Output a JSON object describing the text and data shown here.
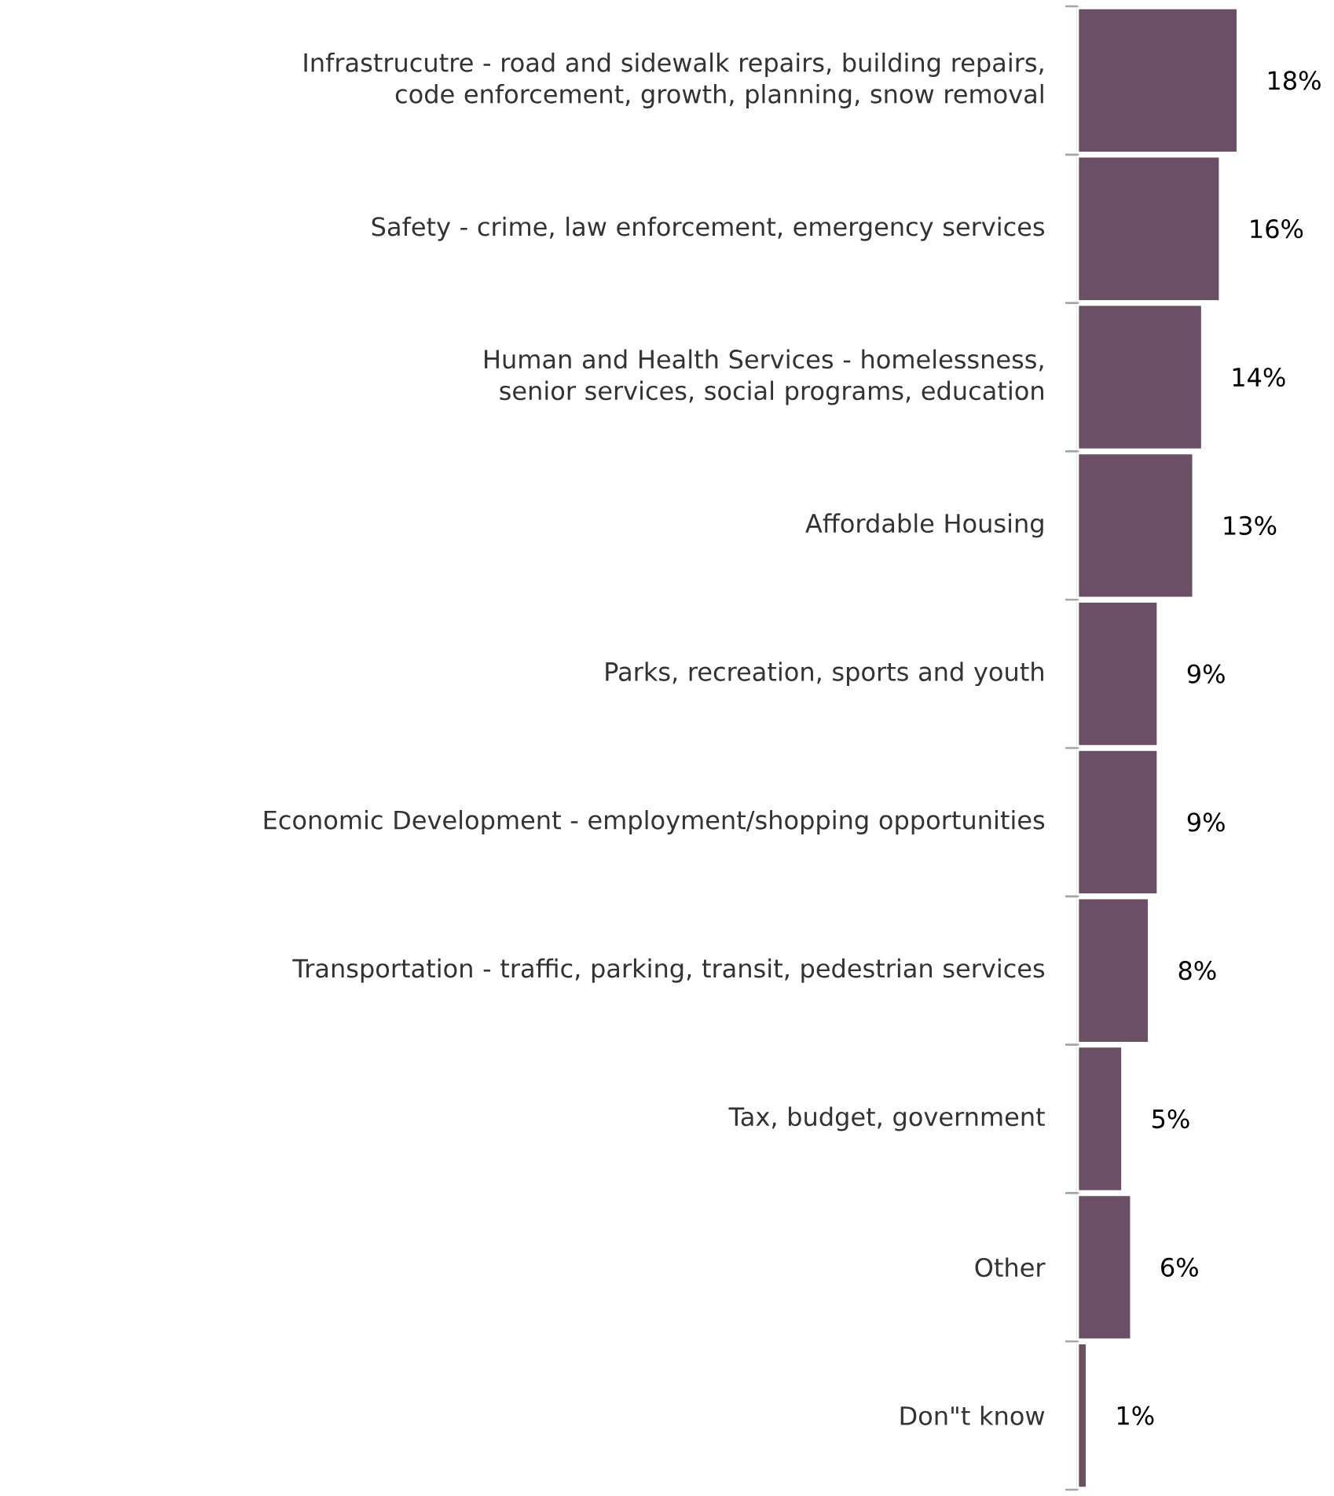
{
  "chart_data": {
    "type": "bar",
    "orientation": "horizontal",
    "color": "#6b4f66",
    "categories": [
      "Infrastrucutre - road and sidewalk repairs, building repairs, code enforcement, growth, planning, snow removal",
      "Safety - crime, law enforcement, emergency services",
      "Human and Health Services - homelessness, senior services, social programs, education",
      "Affordable Housing",
      "Parks, recreation, sports and youth",
      "Economic Development - employment/shopping opportunities",
      "Transportation - traffic, parking, transit, pedestrian services",
      "Tax, budget, government",
      "Other",
      "Don\"t know"
    ],
    "values": [
      18,
      16,
      14,
      13,
      9,
      9,
      8,
      5,
      6,
      1
    ],
    "value_labels": [
      "18%",
      "16%",
      "14%",
      "13%",
      "9%",
      "9%",
      "8%",
      "5%",
      "6%",
      "1%"
    ]
  }
}
